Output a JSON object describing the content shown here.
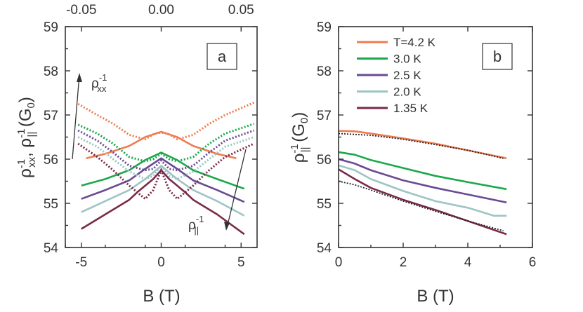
{
  "chart_data": [
    {
      "panel_label": "a",
      "type": "line",
      "xlabel": "B (T)",
      "ylabel_parts": {
        "main": "ρ",
        "sup": "-1",
        "sub1": "xx",
        "sep": ", ρ",
        "sub2": "||",
        "unit": " (G",
        "unit_sub": "0",
        "close": ")"
      },
      "xlim": [
        -6,
        6
      ],
      "ylim": [
        54,
        59
      ],
      "xticks": [
        -5,
        0,
        5
      ],
      "xtick_labels": [
        "-5",
        "0",
        "5"
      ],
      "yticks": [
        54,
        55,
        56,
        57,
        58,
        59
      ],
      "ytick_labels": [
        "54",
        "55",
        "56",
        "57",
        "58",
        "59"
      ],
      "top_axis": {
        "ticks": [
          -0.05,
          0.0,
          0.05
        ],
        "labels": [
          "-0.05",
          "0.00",
          "0.05"
        ]
      },
      "annotations": [
        {
          "id": "rho-xx",
          "text": "ρ",
          "sup": "-1",
          "sub": "xx"
        },
        {
          "id": "rho-par",
          "text": "ρ",
          "sup": "-1",
          "sub": "||"
        }
      ],
      "series": [
        {
          "name": "T=4.2 K",
          "color": "#f07b4f",
          "solid": {
            "x": [
              -4.7,
              -3.5,
              -2,
              -1,
              0,
              1,
              2,
              3.5,
              4.7
            ],
            "y": [
              56.02,
              56.12,
              56.3,
              56.5,
              56.62,
              56.5,
              56.3,
              56.12,
              56.02
            ]
          },
          "dotted": {
            "x": [
              -5.2,
              -4,
              -3,
              -2,
              -1,
              -0.4,
              0,
              0.4,
              1,
              2,
              3,
              4,
              5.8
            ],
            "y": [
              57.25,
              57.0,
              56.8,
              56.55,
              56.45,
              56.58,
              56.6,
              56.58,
              56.45,
              56.55,
              56.8,
              57.0,
              57.28
            ]
          }
        },
        {
          "name": "3.0 K",
          "color": "#1ba84b",
          "solid": {
            "x": [
              -5,
              -3.5,
              -2,
              -1,
              0,
              1,
              2,
              3.5,
              5.2
            ],
            "y": [
              55.4,
              55.55,
              55.75,
              55.98,
              56.15,
              55.98,
              55.75,
              55.55,
              55.33
            ]
          },
          "dotted": {
            "x": [
              -5.2,
              -4,
              -3,
              -2,
              -1,
              -0.5,
              0,
              0.5,
              1,
              2,
              3,
              4,
              5.8
            ],
            "y": [
              56.78,
              56.58,
              56.35,
              56.05,
              55.95,
              56.0,
              56.12,
              56.0,
              55.95,
              56.05,
              56.35,
              56.58,
              56.8
            ]
          }
        },
        {
          "name": "2.5 K",
          "color": "#6a4a92",
          "solid": {
            "x": [
              -5,
              -3.5,
              -2,
              -1,
              0,
              1,
              2,
              3.5,
              5.2
            ],
            "y": [
              55.1,
              55.3,
              55.52,
              55.78,
              56.02,
              55.78,
              55.52,
              55.3,
              55.03
            ]
          },
          "dotted": {
            "x": [
              -5.2,
              -4,
              -3,
              -2,
              -1,
              -0.5,
              0,
              0.5,
              1,
              2,
              3,
              4,
              5.8
            ],
            "y": [
              56.65,
              56.42,
              56.15,
              55.85,
              55.75,
              55.78,
              55.97,
              55.78,
              55.75,
              55.85,
              56.15,
              56.42,
              56.65
            ]
          }
        },
        {
          "name": "2.0 K",
          "color": "#9ec4c4",
          "solid": {
            "x": [
              -5,
              -3.5,
              -2,
              -1,
              0,
              1,
              2,
              3.5,
              5.2
            ],
            "y": [
              54.8,
              55.05,
              55.3,
              55.55,
              55.85,
              55.55,
              55.3,
              55.05,
              54.72
            ]
          },
          "dotted": {
            "x": [
              -5.2,
              -4,
              -3,
              -2,
              -1,
              -0.5,
              0,
              0.5,
              1,
              2,
              3,
              4,
              5.8
            ],
            "y": [
              56.5,
              56.28,
              56.0,
              55.72,
              55.55,
              55.62,
              55.85,
              55.62,
              55.55,
              55.72,
              56.0,
              56.28,
              56.5
            ]
          }
        },
        {
          "name": "1.35 K",
          "color": "#7a2a4a",
          "solid": {
            "x": [
              -5,
              -3.5,
              -2,
              -1.5,
              -1,
              -0.5,
              0,
              0.5,
              1,
              1.5,
              2,
              3.5,
              5.2
            ],
            "y": [
              54.42,
              54.75,
              55.08,
              55.25,
              55.4,
              55.55,
              55.75,
              55.55,
              55.4,
              55.25,
              55.08,
              54.75,
              54.3
            ]
          },
          "dotted": {
            "x": [
              -5.2,
              -4,
              -3,
              -2,
              -1,
              -0.5,
              0,
              0.5,
              1,
              2,
              3,
              4,
              5.8
            ],
            "y": [
              56.35,
              56.05,
              55.75,
              55.4,
              55.1,
              55.3,
              55.75,
              55.3,
              55.1,
              55.4,
              55.75,
              56.05,
              56.35
            ]
          }
        }
      ]
    },
    {
      "panel_label": "b",
      "type": "line",
      "xlabel": "B (T)",
      "ylabel_parts": {
        "main": "ρ",
        "sup": "-1",
        "sub1": "||",
        "unit": " (G",
        "unit_sub": "0",
        "close": ")"
      },
      "xlim": [
        0,
        6
      ],
      "ylim": [
        54,
        59
      ],
      "xticks": [
        0,
        2,
        4,
        6
      ],
      "xtick_labels": [
        "0",
        "2",
        "4",
        "6"
      ],
      "yticks": [
        54,
        55,
        56,
        57,
        58,
        59
      ],
      "ytick_labels": [
        "54",
        "55",
        "56",
        "57",
        "58",
        "59"
      ],
      "legend": "top-left",
      "series": [
        {
          "name": "T=4.2 K",
          "color": "#f07b4f",
          "x": [
            0,
            0.5,
            1,
            2,
            3,
            4,
            5.2
          ],
          "y": [
            56.64,
            56.63,
            56.58,
            56.47,
            56.35,
            56.2,
            56.02
          ]
        },
        {
          "name": "3.0 K",
          "color": "#1ba84b",
          "x": [
            0,
            0.5,
            1,
            2,
            3,
            4,
            5.2
          ],
          "y": [
            56.16,
            56.1,
            55.98,
            55.8,
            55.62,
            55.48,
            55.32
          ]
        },
        {
          "name": "2.5 K",
          "color": "#6a4a92",
          "x": [
            0,
            0.5,
            1,
            2,
            3,
            4,
            5.2
          ],
          "y": [
            56.0,
            55.9,
            55.75,
            55.52,
            55.35,
            55.2,
            55.02
          ]
        },
        {
          "name": "2.0 K",
          "color": "#9ec4c4",
          "x": [
            0,
            0.5,
            1,
            2,
            3,
            4,
            4.8,
            5.2
          ],
          "y": [
            55.86,
            55.75,
            55.55,
            55.28,
            55.05,
            54.9,
            54.72,
            54.72
          ]
        },
        {
          "name": "1.35 K",
          "color": "#7a2a4a",
          "x": [
            0,
            0.5,
            1,
            2,
            3,
            4,
            5.2
          ],
          "y": [
            55.77,
            55.55,
            55.35,
            55.08,
            54.85,
            54.6,
            54.3
          ]
        }
      ],
      "fits": [
        {
          "of": "T=4.2 K",
          "x": [
            0,
            1,
            2,
            3,
            4,
            5.1
          ],
          "y": [
            56.58,
            56.54,
            56.45,
            56.33,
            56.2,
            56.02
          ]
        },
        {
          "of": "1.35 K",
          "x": [
            0,
            0.5,
            1,
            2,
            3,
            4,
            5.1
          ],
          "y": [
            55.5,
            55.42,
            55.3,
            55.05,
            54.82,
            54.6,
            54.38
          ]
        }
      ]
    }
  ]
}
